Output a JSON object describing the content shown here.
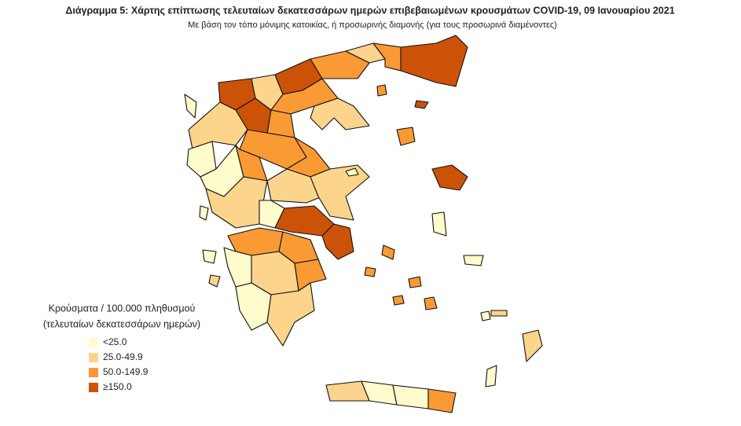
{
  "header": {
    "title": "Διάγραμμα 5: Χάρτης επίπτωσης τελευταίων δεκατεσσάρων ημερών επιβεβαιωμένων κρουσμάτων COVID-19, 09 Ιανουαρίου 2021",
    "subtitle": "Με βάση τον τόπο μόνιμης κατοικίας, ή προσωρινής διαμονής (για τους προσωρινά διαμένοντες)"
  },
  "legend": {
    "title_lines": [
      "Κρούσματα / 100.000 πληθυσμού",
      "(τελευταίων δεκατεσσάρων ημερών)"
    ],
    "items": [
      {
        "label": "<25.0",
        "color": "#fefbcc"
      },
      {
        "label": "25.0-49.9",
        "color": "#fdd48c"
      },
      {
        "label": "50.0-149.9",
        "color": "#f99a35"
      },
      {
        "label": "≥150.0",
        "color": "#cc5208"
      }
    ]
  }
}
